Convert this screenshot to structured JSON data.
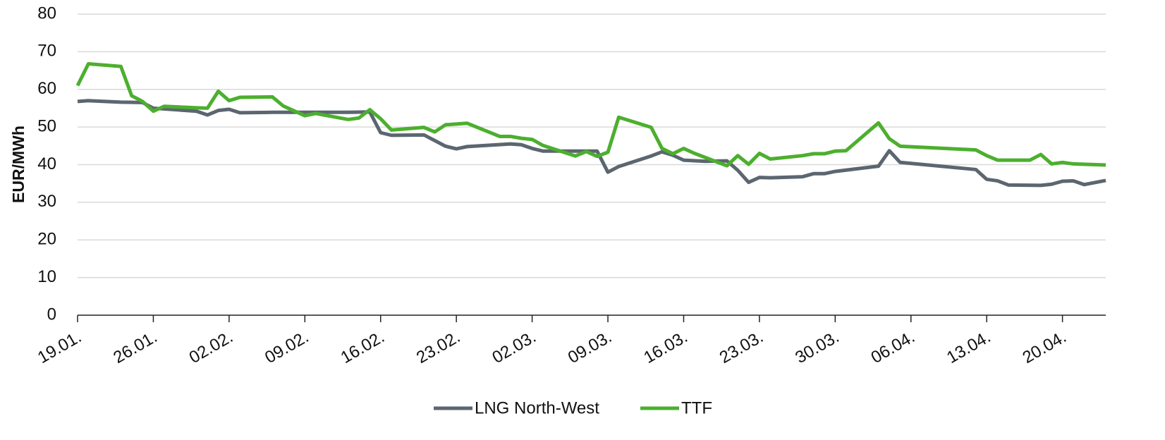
{
  "chart_data": {
    "type": "line",
    "ylabel": "EUR/MWh",
    "xlim": [
      0,
      95
    ],
    "ylim": [
      0,
      80
    ],
    "yticks": [
      0,
      10,
      20,
      30,
      40,
      50,
      60,
      70,
      80
    ],
    "xticks": [
      {
        "value": 0,
        "label": "19.01."
      },
      {
        "value": 7,
        "label": "26.01."
      },
      {
        "value": 14,
        "label": "02.02."
      },
      {
        "value": 21,
        "label": "09.02."
      },
      {
        "value": 28,
        "label": "16.02."
      },
      {
        "value": 35,
        "label": "23.02."
      },
      {
        "value": 42,
        "label": "02.03."
      },
      {
        "value": 49,
        "label": "09.03."
      },
      {
        "value": 56,
        "label": "16.03."
      },
      {
        "value": 63,
        "label": "23.03."
      },
      {
        "value": 70,
        "label": "30.03."
      },
      {
        "value": 77,
        "label": "06.04."
      },
      {
        "value": 84,
        "label": "13.04."
      },
      {
        "value": 91,
        "label": "20.04."
      }
    ],
    "grid": true,
    "legend": "bottom",
    "series": [
      {
        "name": "LNG North-West",
        "color": "#5b6670",
        "x": [
          0,
          1,
          4,
          6,
          7,
          11,
          12,
          13,
          14,
          15,
          18,
          21,
          25,
          27,
          28,
          29,
          32,
          34,
          35,
          36,
          40,
          41,
          42,
          43,
          46,
          48,
          49,
          50,
          53,
          54,
          55,
          56,
          58,
          60,
          61,
          62,
          63,
          64,
          67,
          68,
          69,
          70,
          74,
          75,
          76,
          83,
          84,
          85,
          86,
          89,
          90,
          91,
          92,
          93,
          95
        ],
        "values": [
          56.8,
          57.0,
          56.6,
          56.5,
          55.0,
          54.2,
          53.2,
          54.4,
          54.7,
          53.8,
          53.9,
          53.9,
          53.9,
          54.0,
          48.5,
          47.8,
          47.9,
          44.9,
          44.2,
          44.8,
          45.5,
          45.3,
          44.3,
          43.6,
          43.6,
          43.6,
          38.0,
          39.5,
          42.3,
          43.4,
          42.5,
          41.2,
          40.9,
          41.0,
          38.5,
          35.3,
          36.6,
          36.5,
          36.8,
          37.6,
          37.6,
          38.2,
          39.6,
          43.7,
          40.6,
          38.7,
          36.1,
          35.7,
          34.6,
          34.5,
          34.8,
          35.6,
          35.7,
          34.7,
          35.8
        ]
      },
      {
        "name": "TTF",
        "color": "#4caf2e",
        "x": [
          0,
          1,
          4,
          5,
          6,
          7,
          8,
          11,
          12,
          13,
          14,
          15,
          18,
          19,
          20,
          21,
          22,
          25,
          26,
          27,
          28,
          29,
          32,
          33,
          34,
          36,
          39,
          40,
          41,
          42,
          43,
          46,
          47,
          48,
          49,
          50,
          53,
          54,
          55,
          56,
          57,
          60,
          61,
          62,
          63,
          64,
          67,
          68,
          69,
          70,
          71,
          74,
          75,
          76,
          83,
          84,
          85,
          88,
          89,
          90,
          91,
          92,
          95
        ],
        "values": [
          61.0,
          66.8,
          66.1,
          58.3,
          56.8,
          54.2,
          55.5,
          55.1,
          55.0,
          59.5,
          57.0,
          57.9,
          58.0,
          55.6,
          54.3,
          53.0,
          53.6,
          52.0,
          52.4,
          54.6,
          52.2,
          49.2,
          49.9,
          48.7,
          50.6,
          51.0,
          47.5,
          47.5,
          47.0,
          46.7,
          45.1,
          42.3,
          43.5,
          42.2,
          43.3,
          52.6,
          49.9,
          44.3,
          42.9,
          44.3,
          43.0,
          39.7,
          42.4,
          40.1,
          43.0,
          41.5,
          42.4,
          42.9,
          42.9,
          43.6,
          43.7,
          51.1,
          46.9,
          44.9,
          43.9,
          42.4,
          41.2,
          41.2,
          42.7,
          40.2,
          40.6,
          40.2,
          39.9
        ]
      }
    ]
  }
}
